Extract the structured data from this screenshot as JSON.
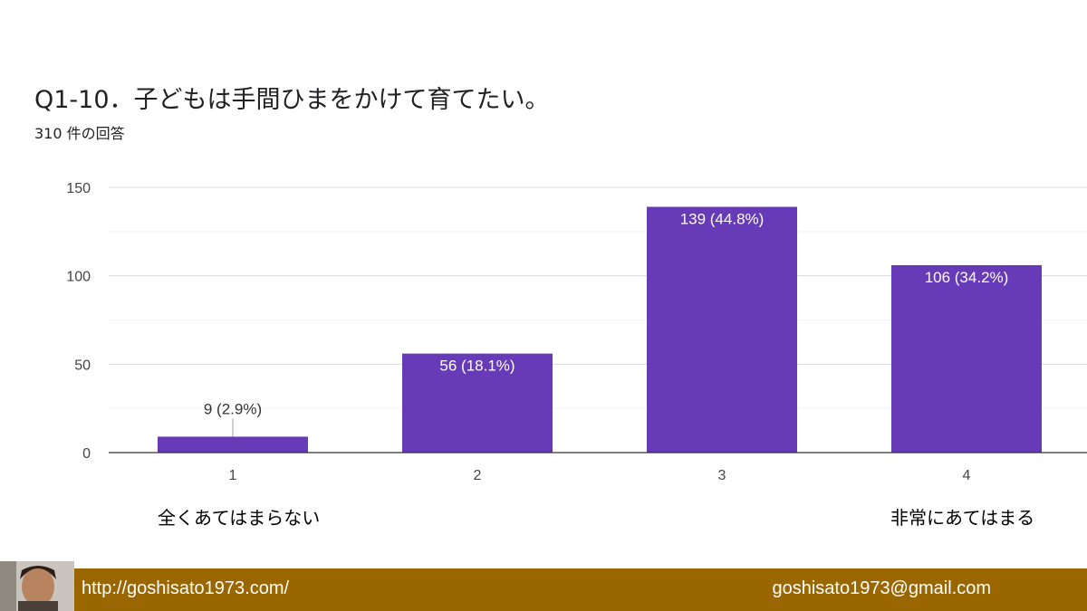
{
  "header": {
    "title": "Q1-10．子どもは手間ひまをかけて育てたい。",
    "response_count": "310 件の回答"
  },
  "chart_data": {
    "type": "bar",
    "categories": [
      "1",
      "2",
      "3",
      "4"
    ],
    "values": [
      9,
      56,
      139,
      106
    ],
    "data_labels": [
      "9 (2.9%)",
      "56 (18.1%)",
      "139 (44.8%)",
      "106 (34.2%)"
    ],
    "yticks": [
      0,
      50,
      100,
      150
    ],
    "ylim": [
      0,
      150
    ],
    "grid": true,
    "bar_color": "#673ab7"
  },
  "scale_labels": {
    "low": "全くあてはまらない",
    "high": "非常にあてはまる"
  },
  "footer": {
    "url": "http://goshisato1973.com/",
    "email": "goshisato1973@gmail.com",
    "background": "#996600"
  }
}
